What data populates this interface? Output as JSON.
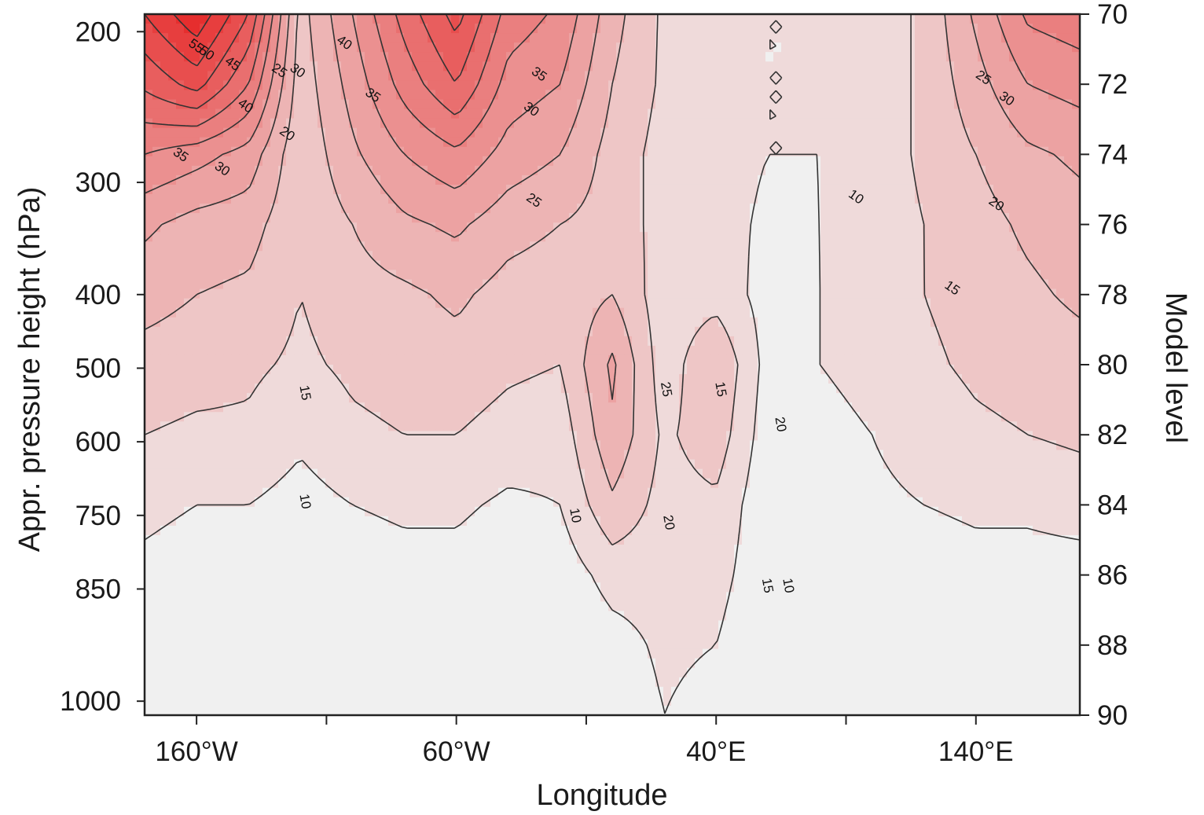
{
  "chart_data": {
    "type": "heatmap",
    "subtype": "filled-contour",
    "title": "",
    "xlabel": "Longitude",
    "ylabel_left": "Appr. pressure height (hPa)",
    "ylabel_right": "Model level",
    "x_ticks": [
      "160°W",
      "60°W",
      "40°E",
      "140°E"
    ],
    "x_tick_values": [
      -160,
      -60,
      40,
      140
    ],
    "xlim": [
      -180,
      180
    ],
    "y_left_ticks": [
      "200",
      "300",
      "400",
      "500",
      "600",
      "750",
      "850",
      "1000"
    ],
    "y_left_tick_model_levels": [
      70.5,
      74.8,
      78,
      80.1,
      82.2,
      84.3,
      86.4,
      89.6
    ],
    "y_right_ticks": [
      "70",
      "72",
      "74",
      "76",
      "78",
      "80",
      "82",
      "84",
      "86",
      "88",
      "90"
    ],
    "ylim_model_level": [
      70,
      90
    ],
    "contour_levels": [
      10,
      15,
      20,
      25,
      30,
      35,
      40,
      45,
      50,
      55,
      60,
      65
    ],
    "contour_labels": [
      "55",
      "50",
      "45",
      "40",
      "35",
      "30",
      "25",
      "30",
      "40",
      "35",
      "35",
      "30",
      "20",
      "25",
      "15",
      "10",
      "10",
      "25",
      "20",
      "15",
      "20",
      "15",
      "10",
      "10",
      "15",
      "25",
      "30",
      "20"
    ],
    "color_low": "#f0f0f0",
    "color_high": "#e51e1e",
    "line_color": "#333333",
    "field": {
      "lon": [
        -180,
        -160,
        -140,
        -120,
        -100,
        -80,
        -60,
        -40,
        -20,
        0,
        20,
        40,
        60,
        80,
        100,
        120,
        140,
        160,
        180
      ],
      "model_level": [
        70,
        72,
        74,
        76,
        78,
        80,
        82,
        84,
        86,
        88,
        90
      ],
      "values": [
        [
          55,
          64,
          50,
          18,
          30,
          42,
          52,
          38,
          34,
          22,
          14,
          12,
          10,
          10,
          12,
          16,
          26,
          36,
          38
        ],
        [
          46,
          52,
          40,
          17,
          27,
          37,
          45,
          33,
          30,
          20,
          14,
          12,
          10,
          10,
          12,
          16,
          23,
          30,
          32
        ],
        [
          35,
          32,
          28,
          16,
          24,
          30,
          34,
          28,
          25,
          18,
          13,
          12,
          10,
          10,
          12,
          16,
          20,
          24,
          26
        ],
        [
          26,
          23,
          22,
          16,
          20,
          24,
          26,
          22,
          20,
          18,
          13,
          12,
          9,
          10,
          12,
          15,
          18,
          21,
          23
        ],
        [
          22,
          20,
          19,
          15,
          18,
          19,
          21,
          18,
          17,
          20,
          12,
          13,
          8,
          10,
          12,
          15,
          17,
          19,
          21
        ],
        [
          18,
          17,
          16,
          14,
          16,
          17,
          18,
          16,
          15,
          26,
          12,
          20,
          8,
          10,
          12,
          14,
          16,
          17,
          18
        ],
        [
          15,
          14,
          14,
          11,
          14,
          15,
          15,
          13,
          12,
          24,
          14,
          18,
          7,
          8,
          10,
          12,
          14,
          15,
          16
        ],
        [
          11,
          10,
          10,
          8,
          10,
          11,
          11,
          9,
          10,
          19,
          13,
          14,
          6,
          8,
          9,
          10,
          11,
          11,
          12
        ],
        [
          9,
          8,
          8,
          6,
          7,
          8,
          8,
          6,
          7,
          12,
          12,
          12,
          6,
          6,
          7,
          7,
          8,
          8,
          8
        ],
        [
          7,
          6,
          6,
          5,
          5,
          6,
          6,
          5,
          5,
          8,
          11,
          10,
          5,
          5,
          5,
          5,
          6,
          6,
          6
        ],
        [
          6,
          5,
          5,
          4,
          4,
          5,
          5,
          4,
          4,
          6,
          10,
          8,
          4,
          4,
          4,
          4,
          5,
          5,
          5
        ]
      ]
    }
  }
}
